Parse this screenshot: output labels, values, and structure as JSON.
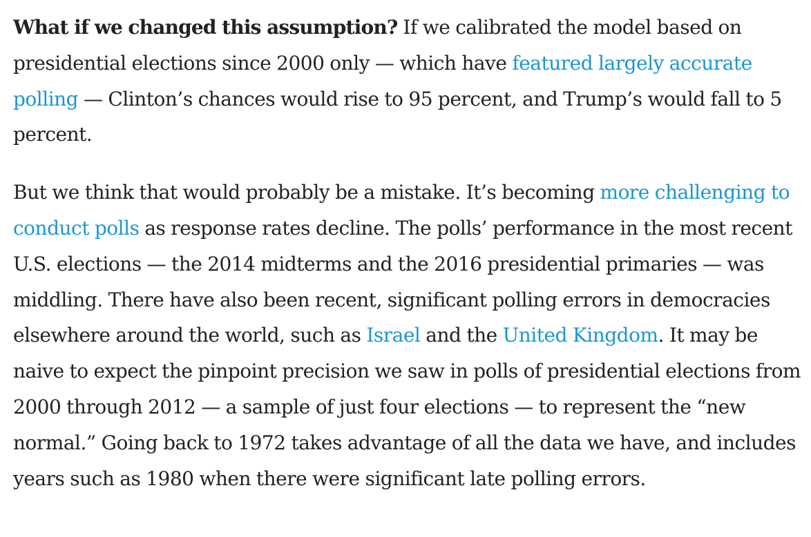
{
  "paragraph1": {
    "lead": "What if we changed this assumption?",
    "t1": " If we calibrated the model based on presidential elections since 2000 only — which have ",
    "link1": "featured largely accurate polling",
    "t2": " — Clinton’s chances would rise to 95 percent, and Trump’s would fall to 5 percent."
  },
  "paragraph2": {
    "t1": "But we think that would probably be a mistake. It’s becoming ",
    "link1": "more challenging to conduct polls",
    "t2": " as response rates decline. The polls’ performance in the most recent U.S. elections — the 2014 midterms and the 2016 presidential primaries — was middling. There have also been recent, significant polling errors in democracies elsewhere around the world, such as ",
    "link2": "Israel",
    "t3": " and the ",
    "link3": "United Kingdom",
    "t4": ". It may be naive to expect the pinpoint precision we saw in polls of presidential elections from 2000 through 2012 — a sample of just four elections — to represent the “new normal.” Going back to 1972 takes advantage of all the data we have, and includes years such as 1980 when there were significant late polling errors."
  },
  "colors": {
    "text": "#222222",
    "link": "#1a96d3",
    "background": "#ffffff"
  }
}
